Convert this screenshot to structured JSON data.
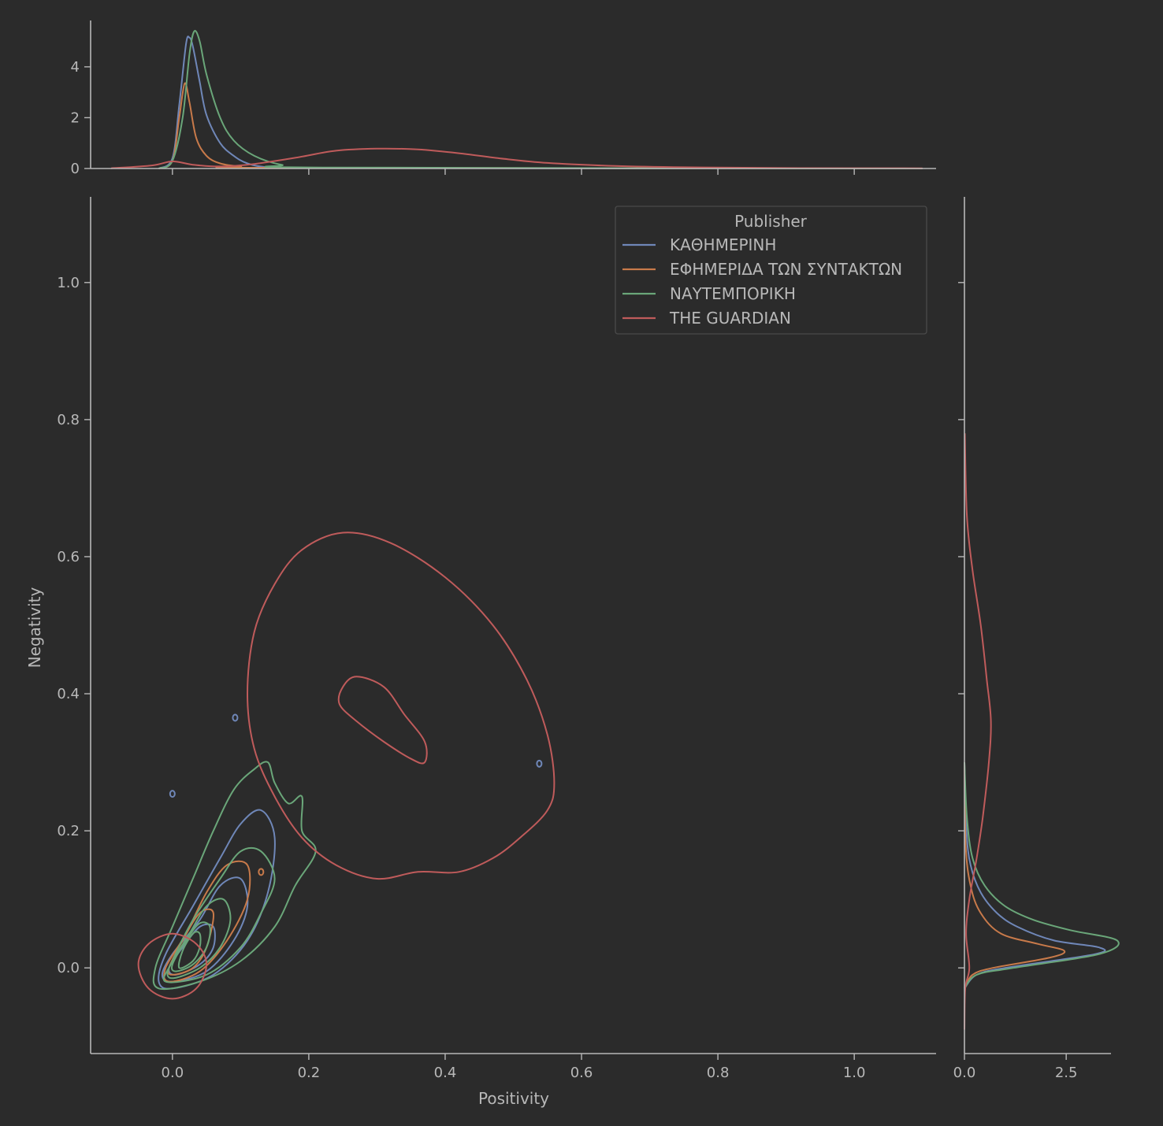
{
  "chart_data": {
    "type": "jointplot-kde",
    "title": "",
    "xlabel": "Positivity",
    "ylabel": "Negativity",
    "xlim": [
      -0.12,
      1.12
    ],
    "ylim": [
      -0.125,
      1.125
    ],
    "x_ticks": [
      "0.0",
      "0.2",
      "0.4",
      "0.6",
      "0.8",
      "1.0"
    ],
    "x_tick_values": [
      0,
      0.2,
      0.4,
      0.6,
      0.8,
      1.0
    ],
    "y_ticks": [
      "0.0",
      "0.2",
      "0.4",
      "0.6",
      "0.8",
      "1.0"
    ],
    "y_tick_values": [
      0,
      0.2,
      0.4,
      0.6,
      0.8,
      1.0
    ],
    "grid": false,
    "top_marginal": {
      "ylim": [
        0,
        5.7
      ],
      "y_ticks": [
        "0",
        "2",
        "4"
      ],
      "y_tick_values": [
        0,
        2,
        4
      ]
    },
    "right_marginal": {
      "xlim": [
        0,
        3.6
      ],
      "x_ticks": [
        "0.0",
        "2.5"
      ],
      "x_tick_values": [
        0,
        2.5
      ]
    },
    "legend": {
      "title": "Publisher",
      "placement": "top-right",
      "entries": [
        {
          "label": "ΚΑΘΗΜΕΡΙΝΗ",
          "color": "#6f87b8"
        },
        {
          "label": "ΕΦΗΜΕΡΙΔΑ ΤΩΝ ΣΥΝΤΑΚΤΩΝ",
          "color": "#c87a4a"
        },
        {
          "label": "ΝΑΥΤΕΜΠΟΡΙΚΗ",
          "color": "#6aa679"
        },
        {
          "label": "THE GUARDIAN",
          "color": "#bf5b5b"
        }
      ]
    },
    "series": [
      {
        "name": "ΚΑΘΗΜΕΡΙΝΗ",
        "color": "#6f87b8",
        "x_density": [
          [
            -0.02,
            0
          ],
          [
            0,
            0.4
          ],
          [
            0.01,
            2.5
          ],
          [
            0.02,
            4.9
          ],
          [
            0.025,
            5.15
          ],
          [
            0.03,
            4.8
          ],
          [
            0.04,
            3.4
          ],
          [
            0.05,
            2.1
          ],
          [
            0.07,
            1.0
          ],
          [
            0.09,
            0.5
          ],
          [
            0.11,
            0.2
          ],
          [
            0.14,
            0.05
          ],
          [
            0.2,
            0.02
          ],
          [
            1.1,
            0
          ]
        ],
        "y_density": [
          [
            -0.03,
            0
          ],
          [
            -0.01,
            0.3
          ],
          [
            0.0,
            1.0
          ],
          [
            0.02,
            3.2
          ],
          [
            0.03,
            3.3
          ],
          [
            0.04,
            2.2
          ],
          [
            0.06,
            1.3
          ],
          [
            0.08,
            0.8
          ],
          [
            0.11,
            0.4
          ],
          [
            0.15,
            0.15
          ],
          [
            0.2,
            0.05
          ],
          [
            0.3,
            0
          ]
        ],
        "contours": [
          [
            [
              0.0,
              -0.03
            ],
            [
              0.06,
              -0.01
            ],
            [
              0.11,
              0.04
            ],
            [
              0.14,
              0.11
            ],
            [
              0.15,
              0.19
            ],
            [
              0.13,
              0.23
            ],
            [
              0.1,
              0.21
            ],
            [
              0.07,
              0.16
            ],
            [
              0.03,
              0.09
            ],
            [
              -0.01,
              0.02
            ],
            [
              -0.02,
              -0.02
            ]
          ],
          [
            [
              0.0,
              -0.02
            ],
            [
              0.05,
              -0.005
            ],
            [
              0.09,
              0.04
            ],
            [
              0.11,
              0.09
            ],
            [
              0.1,
              0.13
            ],
            [
              0.07,
              0.12
            ],
            [
              0.04,
              0.07
            ],
            [
              0.0,
              0.02
            ],
            [
              -0.015,
              -0.01
            ]
          ],
          [
            [
              0.005,
              -0.01
            ],
            [
              0.04,
              0.005
            ],
            [
              0.06,
              0.03
            ],
            [
              0.06,
              0.06
            ],
            [
              0.04,
              0.06
            ],
            [
              0.015,
              0.03
            ],
            [
              -0.005,
              0.0
            ]
          ]
        ],
        "blobs": [
          [
            0.092,
            0.365
          ],
          [
            0.0,
            0.254
          ],
          [
            0.538,
            0.298
          ]
        ]
      },
      {
        "name": "ΕΦΗΜΕΡΙΔΑ ΤΩΝ ΣΥΝΤΑΚΤΩΝ",
        "color": "#c87a4a",
        "x_density": [
          [
            -0.02,
            0
          ],
          [
            0,
            0.3
          ],
          [
            0.01,
            2.0
          ],
          [
            0.018,
            3.35
          ],
          [
            0.025,
            2.6
          ],
          [
            0.035,
            1.2
          ],
          [
            0.05,
            0.5
          ],
          [
            0.07,
            0.2
          ],
          [
            0.1,
            0.08
          ],
          [
            0.15,
            0.03
          ],
          [
            1.1,
            0
          ]
        ],
        "y_density": [
          [
            -0.03,
            0
          ],
          [
            -0.01,
            0.2
          ],
          [
            0.0,
            0.7
          ],
          [
            0.015,
            2.1
          ],
          [
            0.025,
            2.45
          ],
          [
            0.035,
            1.8
          ],
          [
            0.05,
            0.9
          ],
          [
            0.08,
            0.4
          ],
          [
            0.12,
            0.15
          ],
          [
            0.18,
            0.03
          ],
          [
            0.3,
            0
          ]
        ],
        "contours": [
          [
            [
              -0.005,
              -0.02
            ],
            [
              0.04,
              -0.005
            ],
            [
              0.08,
              0.04
            ],
            [
              0.11,
              0.1
            ],
            [
              0.11,
              0.15
            ],
            [
              0.08,
              0.15
            ],
            [
              0.05,
              0.11
            ],
            [
              0.02,
              0.05
            ],
            [
              -0.01,
              0.0
            ]
          ],
          [
            [
              0.0,
              -0.01
            ],
            [
              0.03,
              0.0
            ],
            [
              0.05,
              0.03
            ],
            [
              0.06,
              0.08
            ],
            [
              0.04,
              0.08
            ],
            [
              0.015,
              0.04
            ],
            [
              -0.005,
              0.0
            ]
          ]
        ],
        "blobs": [
          [
            0.13,
            0.14
          ]
        ]
      },
      {
        "name": "ΝΑΥΤΕΜΠΟΡΙΚΗ",
        "color": "#6aa679",
        "x_density": [
          [
            -0.02,
            0
          ],
          [
            0,
            0.3
          ],
          [
            0.015,
            2.0
          ],
          [
            0.025,
            4.5
          ],
          [
            0.032,
            5.4
          ],
          [
            0.04,
            5.0
          ],
          [
            0.05,
            3.7
          ],
          [
            0.07,
            2.0
          ],
          [
            0.09,
            1.1
          ],
          [
            0.12,
            0.5
          ],
          [
            0.16,
            0.15
          ],
          [
            0.22,
            0.04
          ],
          [
            1.1,
            0
          ]
        ],
        "y_density": [
          [
            -0.03,
            0
          ],
          [
            -0.01,
            0.3
          ],
          [
            0.0,
            1.2
          ],
          [
            0.02,
            3.3
          ],
          [
            0.04,
            3.75
          ],
          [
            0.055,
            2.6
          ],
          [
            0.07,
            1.7
          ],
          [
            0.09,
            1.0
          ],
          [
            0.12,
            0.5
          ],
          [
            0.16,
            0.2
          ],
          [
            0.22,
            0.06
          ],
          [
            0.3,
            0
          ]
        ],
        "contours": [
          [
            [
              -0.02,
              -0.03
            ],
            [
              0.04,
              -0.02
            ],
            [
              0.1,
              0.01
            ],
            [
              0.15,
              0.06
            ],
            [
              0.18,
              0.12
            ],
            [
              0.21,
              0.17
            ],
            [
              0.19,
              0.2
            ],
            [
              0.19,
              0.25
            ],
            [
              0.17,
              0.24
            ],
            [
              0.15,
              0.27
            ],
            [
              0.14,
              0.3
            ],
            [
              0.12,
              0.29
            ],
            [
              0.09,
              0.26
            ],
            [
              0.06,
              0.2
            ],
            [
              0.03,
              0.13
            ],
            [
              0.0,
              0.06
            ],
            [
              -0.025,
              0.0
            ]
          ],
          [
            [
              -0.01,
              -0.02
            ],
            [
              0.05,
              -0.01
            ],
            [
              0.1,
              0.03
            ],
            [
              0.13,
              0.08
            ],
            [
              0.15,
              0.13
            ],
            [
              0.13,
              0.17
            ],
            [
              0.1,
              0.17
            ],
            [
              0.07,
              0.13
            ],
            [
              0.03,
              0.07
            ],
            [
              0.0,
              0.01
            ]
          ],
          [
            [
              0.0,
              -0.015
            ],
            [
              0.04,
              0.0
            ],
            [
              0.07,
              0.03
            ],
            [
              0.085,
              0.07
            ],
            [
              0.075,
              0.1
            ],
            [
              0.05,
              0.09
            ],
            [
              0.025,
              0.05
            ],
            [
              -0.005,
              0.0
            ]
          ],
          [
            [
              0.005,
              -0.005
            ],
            [
              0.03,
              0.005
            ],
            [
              0.05,
              0.03
            ],
            [
              0.055,
              0.06
            ],
            [
              0.04,
              0.065
            ],
            [
              0.02,
              0.04
            ],
            [
              0.0,
              0.005
            ]
          ],
          [
            [
              0.01,
              0.0
            ],
            [
              0.03,
              0.01
            ],
            [
              0.04,
              0.03
            ],
            [
              0.04,
              0.05
            ],
            [
              0.03,
              0.05
            ],
            [
              0.015,
              0.025
            ]
          ]
        ],
        "blobs": []
      },
      {
        "name": "THE GUARDIAN",
        "color": "#bf5b5b",
        "x_density": [
          [
            -0.09,
            0.01
          ],
          [
            -0.03,
            0.12
          ],
          [
            0.0,
            0.28
          ],
          [
            0.03,
            0.15
          ],
          [
            0.07,
            0.08
          ],
          [
            0.12,
            0.18
          ],
          [
            0.18,
            0.42
          ],
          [
            0.24,
            0.7
          ],
          [
            0.3,
            0.78
          ],
          [
            0.36,
            0.75
          ],
          [
            0.42,
            0.6
          ],
          [
            0.48,
            0.4
          ],
          [
            0.55,
            0.22
          ],
          [
            0.65,
            0.1
          ],
          [
            0.75,
            0.05
          ],
          [
            0.9,
            0.02
          ],
          [
            1.1,
            0.01
          ]
        ],
        "y_density": [
          [
            -0.09,
            0
          ],
          [
            -0.03,
            0.02
          ],
          [
            0.0,
            0.12
          ],
          [
            0.05,
            0.04
          ],
          [
            0.1,
            0.12
          ],
          [
            0.16,
            0.3
          ],
          [
            0.22,
            0.45
          ],
          [
            0.3,
            0.6
          ],
          [
            0.36,
            0.65
          ],
          [
            0.42,
            0.55
          ],
          [
            0.5,
            0.4
          ],
          [
            0.58,
            0.2
          ],
          [
            0.66,
            0.06
          ],
          [
            0.78,
            0.01
          ]
        ],
        "contours": [
          [
            [
              0.25,
              0.635
            ],
            [
              0.32,
              0.62
            ],
            [
              0.4,
              0.57
            ],
            [
              0.47,
              0.5
            ],
            [
              0.52,
              0.42
            ],
            [
              0.55,
              0.34
            ],
            [
              0.56,
              0.27
            ],
            [
              0.55,
              0.23
            ],
            [
              0.51,
              0.19
            ],
            [
              0.47,
              0.16
            ],
            [
              0.42,
              0.14
            ],
            [
              0.36,
              0.14
            ],
            [
              0.3,
              0.13
            ],
            [
              0.24,
              0.15
            ],
            [
              0.19,
              0.19
            ],
            [
              0.15,
              0.25
            ],
            [
              0.12,
              0.32
            ],
            [
              0.11,
              0.4
            ],
            [
              0.12,
              0.49
            ],
            [
              0.15,
              0.56
            ],
            [
              0.19,
              0.61
            ]
          ],
          [
            [
              0.27,
              0.425
            ],
            [
              0.31,
              0.41
            ],
            [
              0.34,
              0.37
            ],
            [
              0.37,
              0.33
            ],
            [
              0.37,
              0.3
            ],
            [
              0.35,
              0.305
            ],
            [
              0.31,
              0.33
            ],
            [
              0.27,
              0.36
            ],
            [
              0.245,
              0.385
            ],
            [
              0.25,
              0.41
            ]
          ],
          [
            [
              0.0,
              0.05
            ],
            [
              0.035,
              0.035
            ],
            [
              0.05,
              0.005
            ],
            [
              0.035,
              -0.03
            ],
            [
              0.0,
              -0.045
            ],
            [
              -0.035,
              -0.03
            ],
            [
              -0.05,
              0.005
            ],
            [
              -0.035,
              0.035
            ]
          ]
        ],
        "blobs": []
      }
    ]
  }
}
